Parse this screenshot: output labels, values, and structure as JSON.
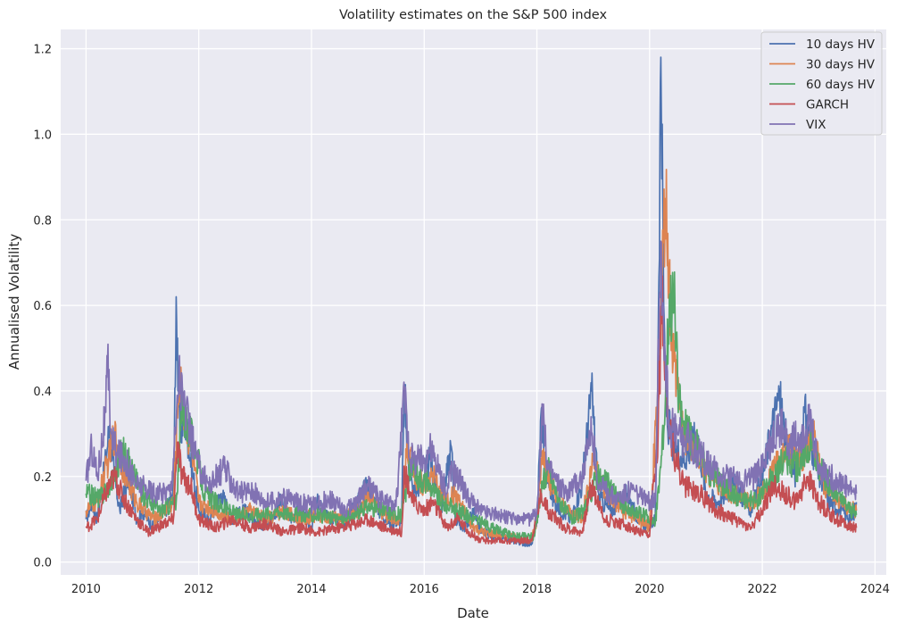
{
  "chart_data": {
    "type": "line",
    "title": "Volatility estimates on the S&P 500 index",
    "xlabel": "Date",
    "ylabel": "Annualised Volatility",
    "xlim": [
      2009.55,
      2024.2
    ],
    "ylim": [
      -0.03,
      1.245
    ],
    "xticks": [
      2010,
      2012,
      2014,
      2016,
      2018,
      2020,
      2022,
      2024
    ],
    "xtick_labels": [
      "2010",
      "2012",
      "2014",
      "2016",
      "2018",
      "2020",
      "2022",
      "2024"
    ],
    "yticks": [
      0.0,
      0.2,
      0.4,
      0.6,
      0.8,
      1.0,
      1.2
    ],
    "ytick_labels": [
      "0.0",
      "0.2",
      "0.4",
      "0.6",
      "0.8",
      "1.0",
      "1.2"
    ],
    "grid": true,
    "legend_position": "top-right",
    "series": [
      {
        "name": "10 days HV",
        "color": "#4c72b0",
        "x": [
          2010.0,
          2010.1,
          2010.2,
          2010.35,
          2010.42,
          2010.5,
          2010.6,
          2010.75,
          2010.9,
          2011.0,
          2011.2,
          2011.4,
          2011.55,
          2011.6,
          2011.63,
          2011.68,
          2011.75,
          2011.9,
          2012.0,
          2012.2,
          2012.4,
          2012.6,
          2012.8,
          2013.0,
          2013.2,
          2013.45,
          2013.6,
          2013.8,
          2014.0,
          2014.1,
          2014.3,
          2014.6,
          2014.8,
          2015.0,
          2015.2,
          2015.4,
          2015.6,
          2015.65,
          2015.7,
          2015.8,
          2016.0,
          2016.1,
          2016.3,
          2016.48,
          2016.55,
          2016.7,
          2016.9,
          2017.0,
          2017.3,
          2017.6,
          2017.9,
          2018.0,
          2018.08,
          2018.15,
          2018.3,
          2018.6,
          2018.8,
          2018.97,
          2019.1,
          2019.3,
          2019.6,
          2019.8,
          2019.95,
          2020.1,
          2020.15,
          2020.2,
          2020.25,
          2020.3,
          2020.4,
          2020.6,
          2020.85,
          2021.0,
          2021.2,
          2021.5,
          2021.8,
          2022.0,
          2022.15,
          2022.3,
          2022.45,
          2022.6,
          2022.75,
          2022.9,
          2023.0,
          2023.2,
          2023.4,
          2023.6,
          2023.67
        ],
        "values": [
          0.1,
          0.14,
          0.1,
          0.24,
          0.32,
          0.2,
          0.12,
          0.2,
          0.1,
          0.12,
          0.08,
          0.12,
          0.16,
          0.62,
          0.4,
          0.3,
          0.34,
          0.2,
          0.12,
          0.1,
          0.16,
          0.1,
          0.12,
          0.1,
          0.08,
          0.14,
          0.1,
          0.12,
          0.08,
          0.14,
          0.1,
          0.09,
          0.14,
          0.18,
          0.12,
          0.09,
          0.1,
          0.41,
          0.26,
          0.16,
          0.2,
          0.24,
          0.12,
          0.27,
          0.1,
          0.08,
          0.12,
          0.07,
          0.06,
          0.05,
          0.04,
          0.1,
          0.36,
          0.22,
          0.14,
          0.1,
          0.18,
          0.4,
          0.15,
          0.12,
          0.16,
          0.1,
          0.08,
          0.1,
          0.5,
          1.18,
          0.6,
          0.34,
          0.28,
          0.24,
          0.3,
          0.16,
          0.14,
          0.18,
          0.12,
          0.2,
          0.3,
          0.39,
          0.26,
          0.2,
          0.35,
          0.26,
          0.2,
          0.14,
          0.12,
          0.1,
          0.14
        ]
      },
      {
        "name": "30 days HV",
        "color": "#dd8452",
        "x": [
          2010.0,
          2010.2,
          2010.4,
          2010.5,
          2010.7,
          2010.9,
          2011.2,
          2011.55,
          2011.65,
          2011.75,
          2011.9,
          2012.0,
          2012.3,
          2012.6,
          2012.9,
          2013.2,
          2013.5,
          2013.8,
          2014.1,
          2014.5,
          2014.8,
          2015.0,
          2015.3,
          2015.6,
          2015.7,
          2015.85,
          2016.0,
          2016.15,
          2016.4,
          2016.55,
          2016.8,
          2017.0,
          2017.5,
          2017.9,
          2018.0,
          2018.1,
          2018.25,
          2018.5,
          2018.8,
          2019.0,
          2019.2,
          2019.5,
          2019.8,
          2020.0,
          2020.15,
          2020.28,
          2020.4,
          2020.6,
          2020.9,
          2021.2,
          2021.5,
          2021.8,
          2022.0,
          2022.3,
          2022.5,
          2022.7,
          2022.9,
          2023.1,
          2023.4,
          2023.67
        ],
        "values": [
          0.12,
          0.14,
          0.24,
          0.3,
          0.2,
          0.14,
          0.1,
          0.14,
          0.43,
          0.34,
          0.24,
          0.14,
          0.12,
          0.1,
          0.12,
          0.1,
          0.12,
          0.1,
          0.11,
          0.1,
          0.12,
          0.15,
          0.11,
          0.1,
          0.28,
          0.2,
          0.18,
          0.2,
          0.14,
          0.16,
          0.09,
          0.07,
          0.06,
          0.05,
          0.1,
          0.26,
          0.18,
          0.12,
          0.1,
          0.24,
          0.16,
          0.12,
          0.1,
          0.08,
          0.4,
          0.85,
          0.5,
          0.3,
          0.24,
          0.18,
          0.16,
          0.14,
          0.16,
          0.24,
          0.26,
          0.24,
          0.3,
          0.18,
          0.14,
          0.12
        ]
      },
      {
        "name": "60 days HV",
        "color": "#55a868",
        "x": [
          2010.0,
          2010.25,
          2010.5,
          2010.65,
          2010.8,
          2011.0,
          2011.3,
          2011.6,
          2011.7,
          2011.8,
          2011.95,
          2012.1,
          2012.4,
          2012.7,
          2013.0,
          2013.4,
          2013.8,
          2014.1,
          2014.5,
          2014.8,
          2015.0,
          2015.3,
          2015.6,
          2015.75,
          2015.9,
          2016.1,
          2016.3,
          2016.6,
          2016.9,
          2017.2,
          2017.6,
          2017.95,
          2018.1,
          2018.2,
          2018.35,
          2018.6,
          2018.85,
          2019.05,
          2019.3,
          2019.6,
          2019.9,
          2020.1,
          2020.25,
          2020.35,
          2020.45,
          2020.5,
          2020.6,
          2020.8,
          2021.0,
          2021.3,
          2021.6,
          2021.9,
          2022.1,
          2022.4,
          2022.65,
          2022.85,
          2023.0,
          2023.3,
          2023.67
        ],
        "values": [
          0.16,
          0.15,
          0.2,
          0.26,
          0.22,
          0.16,
          0.12,
          0.14,
          0.36,
          0.32,
          0.26,
          0.16,
          0.13,
          0.11,
          0.11,
          0.12,
          0.11,
          0.11,
          0.1,
          0.11,
          0.13,
          0.12,
          0.11,
          0.22,
          0.2,
          0.18,
          0.14,
          0.12,
          0.1,
          0.08,
          0.06,
          0.06,
          0.18,
          0.22,
          0.16,
          0.1,
          0.12,
          0.2,
          0.18,
          0.12,
          0.11,
          0.09,
          0.3,
          0.62,
          0.6,
          0.4,
          0.32,
          0.28,
          0.22,
          0.18,
          0.15,
          0.14,
          0.18,
          0.24,
          0.22,
          0.28,
          0.22,
          0.16,
          0.11
        ]
      },
      {
        "name": "GARCH",
        "color": "#c44e52",
        "x": [
          2010.0,
          2010.2,
          2010.35,
          2010.5,
          2010.7,
          2010.9,
          2011.1,
          2011.4,
          2011.55,
          2011.62,
          2011.7,
          2011.85,
          2012.0,
          2012.3,
          2012.6,
          2012.9,
          2013.2,
          2013.5,
          2013.8,
          2014.1,
          2014.5,
          2014.8,
          2015.0,
          2015.3,
          2015.6,
          2015.65,
          2015.8,
          2016.0,
          2016.15,
          2016.4,
          2016.6,
          2016.8,
          2017.0,
          2017.5,
          2017.9,
          2018.08,
          2018.2,
          2018.5,
          2018.8,
          2018.97,
          2019.2,
          2019.5,
          2019.8,
          2020.0,
          2020.15,
          2020.22,
          2020.35,
          2020.6,
          2020.9,
          2021.2,
          2021.5,
          2021.8,
          2022.0,
          2022.2,
          2022.4,
          2022.6,
          2022.8,
          2023.0,
          2023.3,
          2023.67
        ],
        "values": [
          0.08,
          0.1,
          0.16,
          0.2,
          0.14,
          0.1,
          0.07,
          0.09,
          0.1,
          0.28,
          0.2,
          0.18,
          0.1,
          0.08,
          0.1,
          0.08,
          0.09,
          0.07,
          0.08,
          0.07,
          0.08,
          0.09,
          0.1,
          0.08,
          0.07,
          0.22,
          0.14,
          0.12,
          0.14,
          0.08,
          0.1,
          0.07,
          0.05,
          0.05,
          0.05,
          0.16,
          0.12,
          0.08,
          0.07,
          0.18,
          0.1,
          0.09,
          0.07,
          0.06,
          0.3,
          0.62,
          0.3,
          0.18,
          0.16,
          0.12,
          0.1,
          0.08,
          0.12,
          0.18,
          0.16,
          0.14,
          0.2,
          0.14,
          0.1,
          0.08
        ]
      },
      {
        "name": "VIX",
        "color": "#8172b3",
        "x": [
          2010.0,
          2010.1,
          2010.2,
          2010.35,
          2010.38,
          2010.45,
          2010.55,
          2010.7,
          2010.9,
          2011.1,
          2011.3,
          2011.5,
          2011.6,
          2011.65,
          2011.72,
          2011.85,
          2012.0,
          2012.2,
          2012.45,
          2012.7,
          2012.9,
          2013.2,
          2013.5,
          2013.8,
          2014.1,
          2014.3,
          2014.6,
          2014.8,
          2015.0,
          2015.2,
          2015.5,
          2015.65,
          2015.75,
          2016.0,
          2016.1,
          2016.4,
          2016.5,
          2016.8,
          2017.0,
          2017.3,
          2017.6,
          2017.9,
          2018.0,
          2018.1,
          2018.2,
          2018.5,
          2018.8,
          2018.97,
          2019.1,
          2019.4,
          2019.7,
          2019.95,
          2020.1,
          2020.2,
          2020.25,
          2020.35,
          2020.5,
          2020.7,
          2020.9,
          2021.1,
          2021.3,
          2021.6,
          2021.9,
          2022.1,
          2022.3,
          2022.5,
          2022.7,
          2022.85,
          2023.0,
          2023.2,
          2023.45,
          2023.67
        ],
        "values": [
          0.19,
          0.27,
          0.2,
          0.35,
          0.46,
          0.3,
          0.25,
          0.24,
          0.18,
          0.17,
          0.16,
          0.17,
          0.32,
          0.45,
          0.38,
          0.3,
          0.22,
          0.18,
          0.22,
          0.16,
          0.17,
          0.14,
          0.15,
          0.14,
          0.13,
          0.15,
          0.12,
          0.14,
          0.18,
          0.15,
          0.13,
          0.4,
          0.24,
          0.24,
          0.27,
          0.16,
          0.22,
          0.15,
          0.12,
          0.11,
          0.1,
          0.1,
          0.12,
          0.34,
          0.22,
          0.16,
          0.2,
          0.3,
          0.18,
          0.15,
          0.17,
          0.14,
          0.15,
          0.75,
          0.55,
          0.32,
          0.3,
          0.28,
          0.25,
          0.22,
          0.2,
          0.19,
          0.2,
          0.26,
          0.32,
          0.28,
          0.3,
          0.33,
          0.22,
          0.2,
          0.18,
          0.16
        ]
      }
    ]
  }
}
